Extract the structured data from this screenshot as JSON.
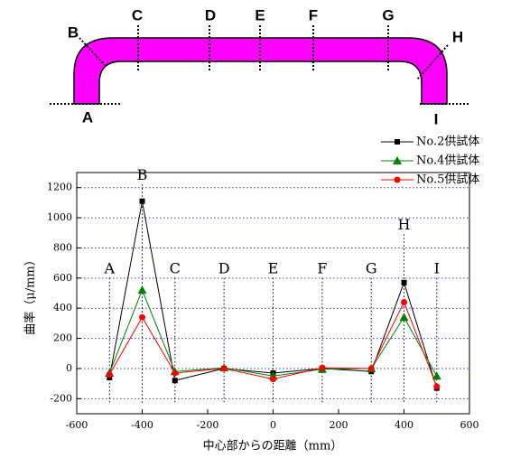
{
  "diagram": {
    "labels": [
      "A",
      "B",
      "C",
      "D",
      "E",
      "F",
      "G",
      "H",
      "I"
    ]
  },
  "chart_data": {
    "type": "line",
    "x_label": "中心部からの距離（mm）",
    "y_label": "曲率（μ/mm）",
    "x": [
      -500,
      -400,
      -300,
      -150,
      0,
      150,
      300,
      400,
      500
    ],
    "series": [
      {
        "name": "No.2供試体",
        "color": "#000000",
        "marker": "square",
        "values": [
          -60,
          1110,
          -80,
          0,
          -30,
          0,
          -20,
          570,
          -130
        ]
      },
      {
        "name": "No.4供試体",
        "color": "#008000",
        "marker": "triangle",
        "values": [
          -30,
          520,
          -20,
          5,
          -50,
          -5,
          0,
          340,
          -50
        ]
      },
      {
        "name": "No.5供試体",
        "color": "#ff0000",
        "marker": "circle",
        "values": [
          -40,
          340,
          -30,
          0,
          -70,
          5,
          0,
          440,
          -120
        ]
      }
    ],
    "annotations": [
      {
        "text": "A",
        "x": -500,
        "y": 660
      },
      {
        "text": "B",
        "x": -400,
        "y": 1280
      },
      {
        "text": "C",
        "x": -300,
        "y": 660
      },
      {
        "text": "D",
        "x": -150,
        "y": 660
      },
      {
        "text": "E",
        "x": 0,
        "y": 660
      },
      {
        "text": "F",
        "x": 150,
        "y": 660
      },
      {
        "text": "G",
        "x": 300,
        "y": 660
      },
      {
        "text": "H",
        "x": 400,
        "y": 950
      },
      {
        "text": "I",
        "x": 500,
        "y": 660
      }
    ],
    "xlim": [
      -600,
      600
    ],
    "xticks": [
      -600,
      -400,
      -200,
      0,
      200,
      400,
      600
    ],
    "ylim": [
      -300,
      1300
    ],
    "yticks": [
      -200,
      0,
      200,
      400,
      600,
      800,
      1000,
      1200
    ],
    "grid": true,
    "legend": "top-right"
  }
}
